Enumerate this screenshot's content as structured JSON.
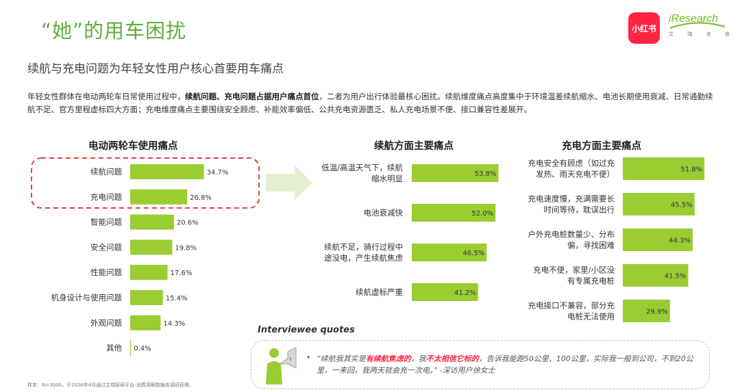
{
  "header": {
    "title": "“她”的用车困扰",
    "subtitle": "续航与充电问题为年轻女性用户核心首要用车痛点",
    "logo_xhs": "小红书",
    "logo_iresearch": "iResearch",
    "logo_iresearch_cn": "艾 瑞 咨 询"
  },
  "intro": {
    "p1": "年轻女性群体在电动两轮车日常使用过程中，",
    "p2": "续航问题、充电问题占据用户痛点首位",
    "p3": "，二者为用户出行体验最核心困扰。续航维度痛点高度集中于环境温差续航缩水、电池长期使用衰减、日常通勤续航不足、官方里程虚标四大方面；充电维度痛点主要围绕安全顾虑、补能效率偏低、公共充电资源匮乏、私人充电场景不便、接口兼容性差展开。"
  },
  "colors": {
    "bar": "#9acd32",
    "accent_green": "#5fae3a",
    "highlight_border": "#e8403a",
    "arrow": "#e4efcf"
  },
  "chart_data": [
    {
      "type": "bar",
      "orientation": "horizontal",
      "title": "电动两轮车使用痛点",
      "categories": [
        "续航问题",
        "充电问题",
        "智能问题",
        "安全问题",
        "性能问题",
        "机身设计与使用问题",
        "外观问题",
        "其他"
      ],
      "values": [
        34.7,
        26.8,
        20.6,
        19.8,
        17.6,
        15.4,
        14.3,
        0.4
      ],
      "labels": [
        "34.7%",
        "26.8%",
        "20.6%",
        "19.8%",
        "17.6%",
        "15.4%",
        "14.3%",
        "0.4%"
      ],
      "highlighted": [
        "续航问题",
        "充电问题"
      ],
      "unit": "%"
    },
    {
      "type": "bar",
      "orientation": "horizontal",
      "title": "续航方面主要痛点",
      "categories": [
        [
          "低温/高温天气下，续航",
          "缩水明显"
        ],
        [
          "电池衰减快"
        ],
        [
          "续航不足，骑行过程中",
          "途没电，产生续航焦虑"
        ],
        [
          "续航虚标严重"
        ]
      ],
      "values": [
        53.8,
        52.0,
        46.5,
        41.2
      ],
      "labels": [
        "53.8%",
        "52.0%",
        "46.5%",
        "41.2%"
      ],
      "unit": "%"
    },
    {
      "type": "bar",
      "orientation": "horizontal",
      "title": "充电方面主要痛点",
      "categories": [
        [
          "充电安全有顾虑（如过充",
          "发热、雨天充电不便）"
        ],
        [
          "充电速度慢，充满需要长",
          "时间等待，耽误出行"
        ],
        [
          "户外充电桩数量少、分布",
          "偏，寻找困难"
        ],
        [
          "充电不便，家里/小区没",
          "有专属充电桩"
        ],
        [
          "充电接口不兼容，部分充",
          "电桩无法使用"
        ]
      ],
      "values": [
        51.8,
        45.5,
        44.3,
        41.5,
        29.9
      ],
      "labels": [
        "51.8%",
        "45.5%",
        "44.3%",
        "41.5%",
        "29.9%"
      ],
      "unit": "%"
    }
  ],
  "quotes": {
    "title": "Interviewee quotes",
    "bullet": "•",
    "q1": "“续航我其实是",
    "q2": "有续航焦虑的",
    "q3": "，我",
    "q4": "不太相信它标的",
    "q5": "，告诉我能跑50公里、100公里，实际我一般到公司，不到20公里，一来回，我两天就会充一次电。” -深访用户徐女士"
  },
  "footnote": "样本：N=3000，于2026年4月通过艾瑞智研平台-消费洞察数据库调研获得。"
}
